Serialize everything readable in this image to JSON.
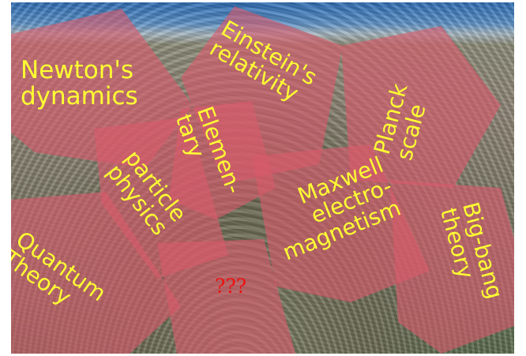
{
  "labels": {
    "newton": "Newton's\ndynamics",
    "einstein": "Einstein's\nrelativity",
    "planck": "Planck\nscale",
    "elementary": "Elemen-\ntary",
    "particle": "particle\nphysics",
    "maxwell": "Maxwell\nelectro-\nmagnetism",
    "quantum": "Quantum\nTheory",
    "bigbang": "Big-bang\ntheory",
    "unknown": "???"
  },
  "colors": {
    "overlay": "#d85a6a",
    "label_text": "#ffff33",
    "unknown_text": "#ee1111"
  }
}
